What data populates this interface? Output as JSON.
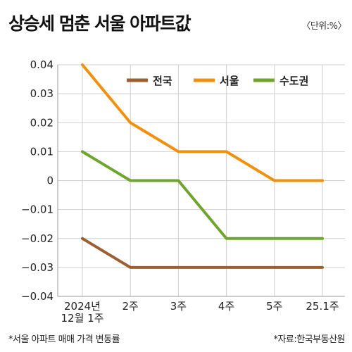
{
  "header": {
    "title": "상승세 멈춘 서울 아파트값",
    "unit": "〈단위:%〉"
  },
  "footer": {
    "note": "*서울 아파트 매매 가격 변동률",
    "source": "*자료:한국부동산원"
  },
  "colors": {
    "grid": "#cfcfcf",
    "axis": "#999999"
  },
  "chart_data": {
    "type": "line",
    "title": "상승세 멈춘 서울 아파트값",
    "categories": [
      "2024년 12월 1주",
      "2주",
      "3주",
      "4주",
      "5주",
      "25.1주"
    ],
    "x_labels": [
      [
        "2024년",
        "12월 1주"
      ],
      [
        "2주"
      ],
      [
        "3주"
      ],
      [
        "4주"
      ],
      [
        "5주"
      ],
      [
        "25.1주"
      ]
    ],
    "ylim": [
      -0.04,
      0.04
    ],
    "y_ticks": [
      0.04,
      0.03,
      0.02,
      0.01,
      0,
      -0.01,
      -0.02,
      -0.03,
      -0.04
    ],
    "y_tick_labels": [
      "0.04",
      "0.03",
      "0.02",
      "0.01",
      "0",
      "−0.01",
      "−0.02",
      "−0.03",
      "−0.04"
    ],
    "grid": true,
    "legend_position": "top-right",
    "series": [
      {
        "name": "전국",
        "color": "#9a6032",
        "values": [
          -0.02,
          -0.03,
          -0.03,
          -0.03,
          -0.03,
          -0.03
        ]
      },
      {
        "name": "서울",
        "color": "#f0900f",
        "values": [
          0.04,
          0.02,
          0.01,
          0.01,
          0,
          0
        ]
      },
      {
        "name": "수도권",
        "color": "#6fa52f",
        "values": [
          0.01,
          0,
          0,
          -0.02,
          -0.02,
          -0.02
        ]
      }
    ]
  }
}
